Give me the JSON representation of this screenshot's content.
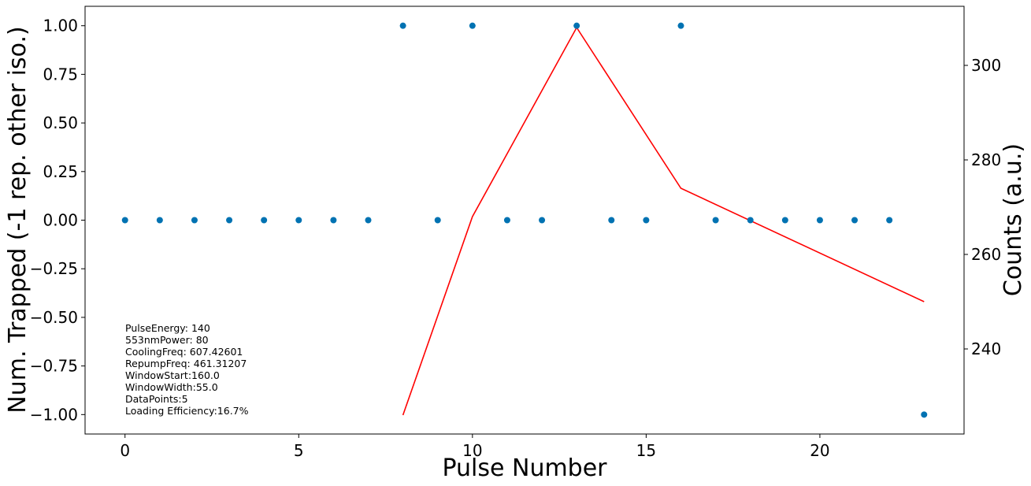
{
  "chart_data": {
    "type": "scatter",
    "xlabel": "Pulse Number",
    "ylabel": "Num. Trapped (-1 rep. other iso.)",
    "y2label": "Counts (a.u.)",
    "xlim": [
      -1.15,
      24.15
    ],
    "ylim": [
      -1.1,
      1.1
    ],
    "y2lim": [
      222.0,
      312.5
    ],
    "x_ticks": [
      0,
      5,
      10,
      15,
      20
    ],
    "y_ticks": [
      1.0,
      0.75,
      0.5,
      0.25,
      0.0,
      -0.25,
      -0.5,
      -0.75,
      -1.0
    ],
    "y_tick_labels": [
      "1.00",
      "0.75",
      "0.50",
      "0.25",
      "0.00",
      "−0.25",
      "−0.50",
      "−0.75",
      "−1.00"
    ],
    "y2_ticks": [
      240,
      260,
      280,
      300
    ],
    "grid": false,
    "series": [
      {
        "kind": "scatter",
        "axis": "left",
        "color": "#0072B2",
        "x": [
          0,
          1,
          2,
          3,
          4,
          5,
          6,
          7,
          8,
          9,
          10,
          11,
          12,
          13,
          14,
          15,
          16,
          17,
          18,
          19,
          20,
          21,
          22,
          23
        ],
        "y": [
          0,
          0,
          0,
          0,
          0,
          0,
          0,
          0,
          1,
          0,
          1,
          0,
          0,
          1,
          0,
          0,
          1,
          0,
          0,
          0,
          0,
          0,
          0,
          -1
        ]
      },
      {
        "kind": "line",
        "axis": "right",
        "color": "#ff0000",
        "x": [
          8,
          10,
          13,
          16,
          23
        ],
        "y": [
          226,
          268,
          308,
          274,
          250
        ]
      }
    ],
    "annotation": [
      "PulseEnergy: 140",
      "553nmPower: 80",
      "CoolingFreq: 607.42601",
      "RepumpFreq: 461.31207",
      "WindowStart:160.0",
      "WindowWidth:55.0",
      "DataPoints:5",
      "Loading Efficiency:16.7%"
    ]
  }
}
